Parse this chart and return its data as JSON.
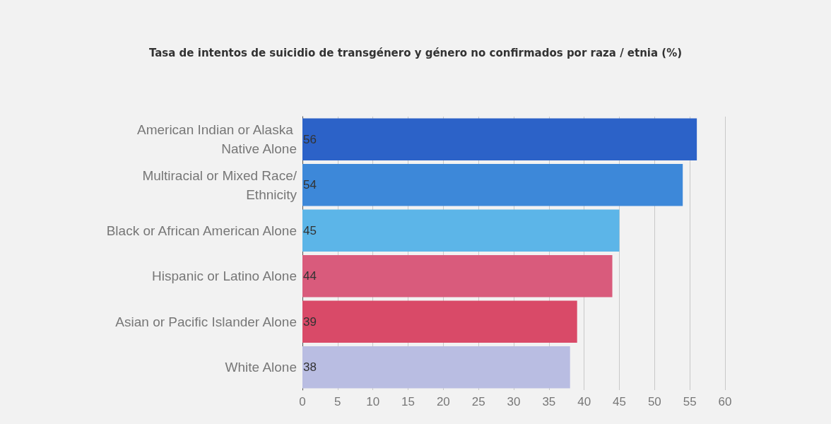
{
  "chart_data": {
    "type": "bar",
    "orientation": "horizontal",
    "title": "Tasa de intentos de suicidio de transgénero y género no confirmados por raza / etnia (%)",
    "categories": [
      "American Indian or Alaska Native Alone",
      "Multiracial or Mixed Race/Ethnicity",
      "Black or African American Alone",
      "Hispanic or Latino Alone",
      "Asian or Pacific Islander Alone",
      "White Alone"
    ],
    "values": [
      56,
      54,
      45,
      44,
      39,
      38
    ],
    "colors": [
      "#2c62c8",
      "#3d88d9",
      "#5cb5e8",
      "#d95b7c",
      "#d94a68",
      "#b9bde2"
    ],
    "xlim": [
      0,
      60
    ],
    "xticks": [
      0,
      5,
      10,
      15,
      20,
      25,
      30,
      35,
      40,
      45,
      50,
      55,
      60
    ],
    "grid": "x",
    "data_labels": true
  }
}
